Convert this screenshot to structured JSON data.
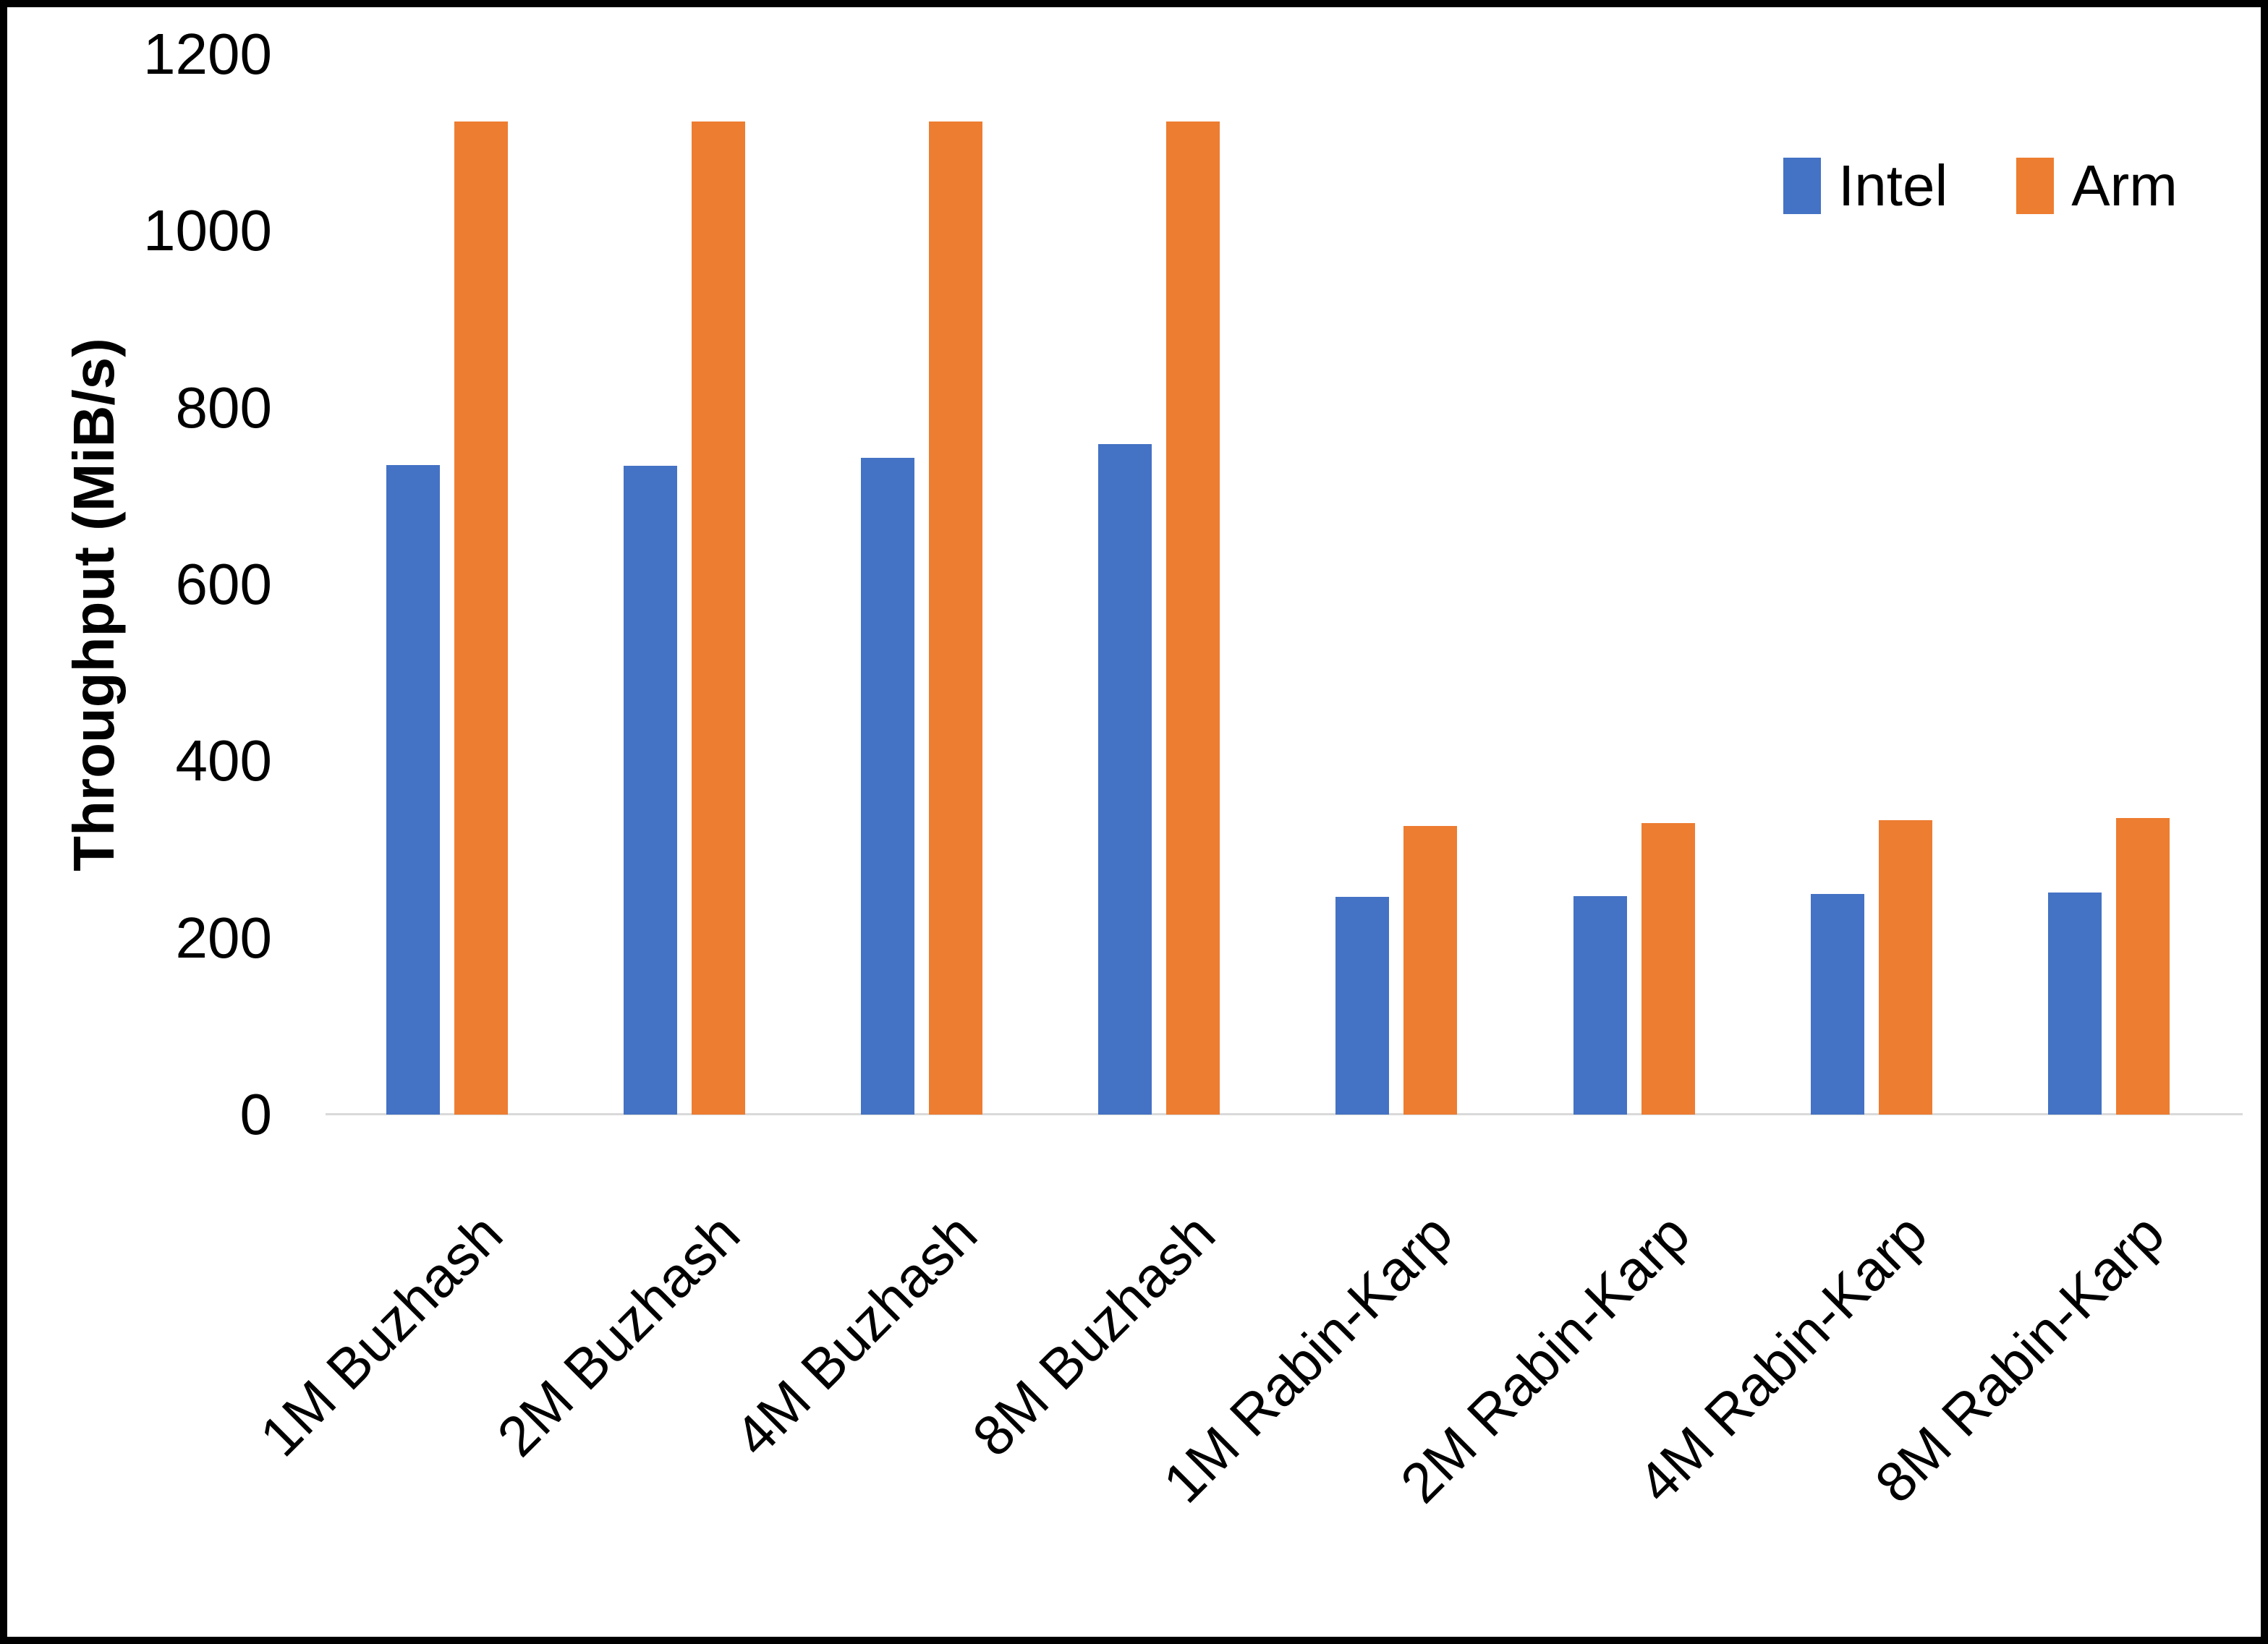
{
  "chart_data": {
    "type": "bar",
    "title": "",
    "ylabel": "Throughput (MiB/s)",
    "xlabel": "",
    "ylim": [
      0,
      1200
    ],
    "yticks": [
      0,
      200,
      400,
      600,
      800,
      1000,
      1200
    ],
    "grid": false,
    "legend_position": "top-right",
    "categories": [
      "1M Buzhash",
      "2M Buzhash",
      "4M Buzhash",
      "8M Buzhash",
      "1M Rabin-Karp",
      "2M Rabin-Karp",
      "4M Rabin-Karp",
      "8M Rabin-Karp"
    ],
    "series": [
      {
        "name": "Intel",
        "color": "#4472C4",
        "values": [
          735,
          734,
          743,
          759,
          246,
          247,
          250,
          251
        ]
      },
      {
        "name": "Arm",
        "color": "#ED7D31",
        "values": [
          1124,
          1124,
          1124,
          1124,
          327,
          330,
          333,
          336
        ]
      }
    ]
  },
  "colors": {
    "axis_line": "#d9d9d9",
    "text": "#000000",
    "frame": "#000000",
    "background": "#ffffff"
  }
}
